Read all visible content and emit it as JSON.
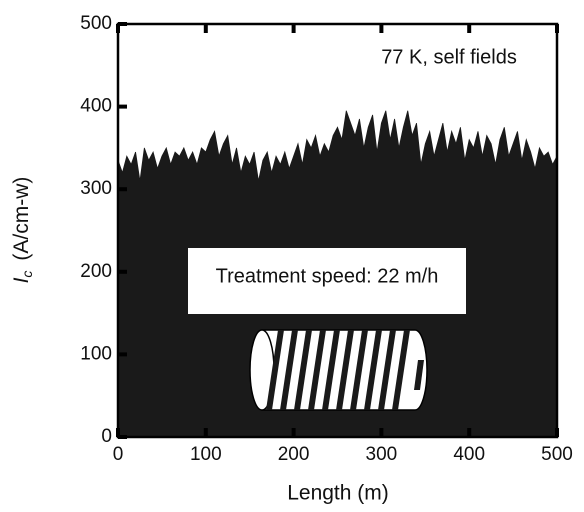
{
  "chart_data": {
    "type": "area",
    "y_label_symbol": "I",
    "y_label_subscript": "c",
    "y_label_unit": "(A/cm-w)",
    "x_label": "Length (m)",
    "annotations": [
      "77 K, self fields",
      "Treatment speed: 22 m/h"
    ],
    "color": "#1a1a1a",
    "xlim": [
      0,
      500
    ],
    "xticks": [
      0,
      100,
      200,
      300,
      400,
      500
    ],
    "ylim": [
      0,
      500
    ],
    "yticks": [
      0,
      100,
      200,
      300,
      400,
      500
    ],
    "x": [
      0,
      5,
      10,
      15,
      20,
      25,
      30,
      35,
      40,
      45,
      50,
      55,
      60,
      65,
      70,
      75,
      80,
      85,
      90,
      95,
      100,
      105,
      110,
      115,
      120,
      125,
      130,
      135,
      140,
      145,
      150,
      155,
      160,
      165,
      170,
      175,
      180,
      185,
      190,
      195,
      200,
      205,
      210,
      215,
      220,
      225,
      230,
      235,
      240,
      245,
      250,
      255,
      260,
      265,
      270,
      275,
      280,
      285,
      290,
      295,
      300,
      305,
      310,
      315,
      320,
      325,
      330,
      335,
      340,
      345,
      350,
      355,
      360,
      365,
      370,
      375,
      380,
      385,
      390,
      395,
      400,
      405,
      410,
      415,
      420,
      425,
      430,
      435,
      440,
      445,
      450,
      455,
      460,
      465,
      470,
      475,
      480,
      485,
      490,
      495,
      500
    ],
    "series": [
      {
        "values": [
          335,
          320,
          340,
          330,
          345,
          310,
          350,
          335,
          345,
          325,
          340,
          350,
          330,
          345,
          340,
          350,
          335,
          345,
          330,
          350,
          345,
          360,
          370,
          340,
          355,
          365,
          330,
          350,
          320,
          340,
          330,
          345,
          310,
          335,
          345,
          320,
          340,
          330,
          345,
          325,
          340,
          355,
          330,
          360,
          350,
          365,
          340,
          355,
          345,
          365,
          375,
          360,
          395,
          380,
          365,
          385,
          350,
          375,
          390,
          345,
          380,
          395,
          360,
          385,
          350,
          375,
          395,
          365,
          380,
          330,
          355,
          370,
          340,
          360,
          380,
          345,
          370,
          355,
          375,
          335,
          360,
          350,
          370,
          340,
          365,
          355,
          330,
          360,
          375,
          340,
          355,
          370,
          335,
          360,
          345,
          325,
          350,
          340,
          345,
          330,
          340
        ]
      }
    ]
  }
}
